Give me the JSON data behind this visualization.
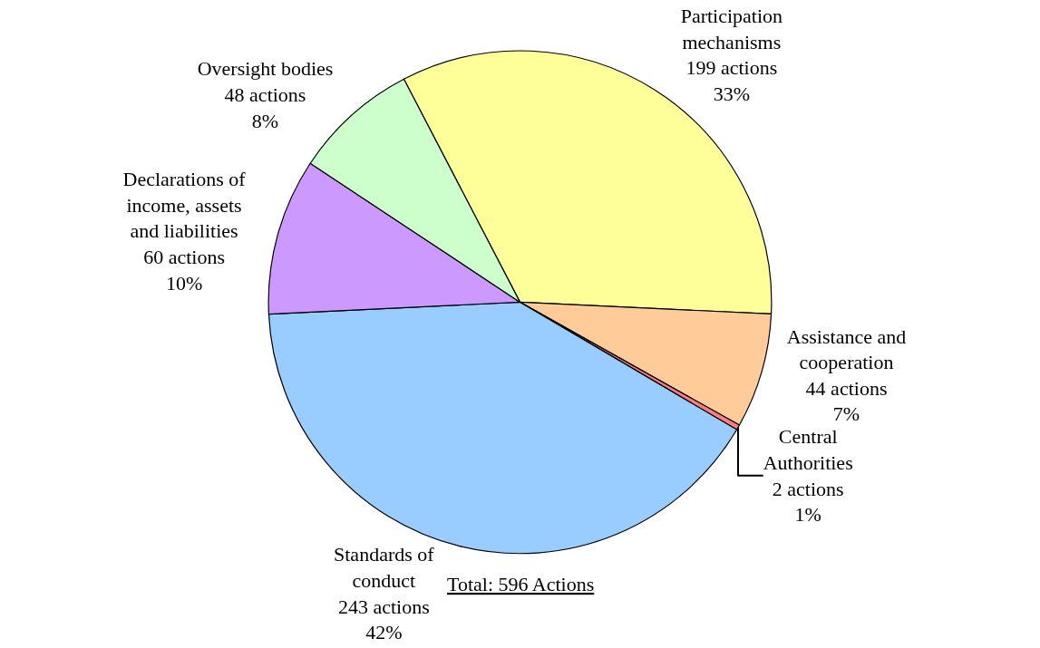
{
  "chart_data": {
    "type": "pie",
    "categories": [
      "Participation mechanisms",
      "Assistance and cooperation",
      "Central Authorities",
      "Standards of conduct",
      "Declarations of income, assets and liabilities",
      "Oversight bodies"
    ],
    "values": [
      199,
      44,
      2,
      243,
      60,
      48
    ],
    "colors": [
      "#ffff99",
      "#ffcc99",
      "#ff7c80",
      "#99ccff",
      "#cc99ff",
      "#ccffcc"
    ],
    "value_labels": [
      "199 actions\n33%",
      "44 actions\n7%",
      "2 actions\n1%",
      "243 actions\n42%",
      "60 actions\n10%",
      "48 actions\n8%"
    ],
    "annotations": [
      "Total: 596 Actions"
    ],
    "legend": false
  }
}
